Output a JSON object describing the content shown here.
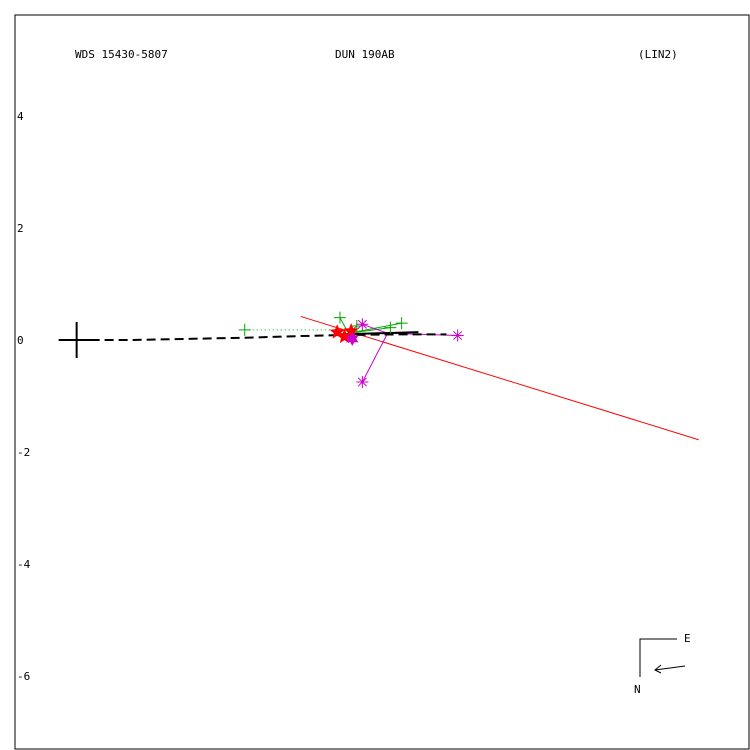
{
  "chart_data": {
    "type": "scatter",
    "title_left": "WDS 15430-5807",
    "title_center": "DUN 190AB",
    "title_right": "(LIN2)",
    "xlabel": "",
    "ylabel": "",
    "xlim": [
      -1.1,
      12.0
    ],
    "ylim": [
      -7.3,
      5.8
    ],
    "yticks": [
      4,
      2,
      0,
      -2,
      -4,
      -6
    ],
    "ytick_labels": [
      "4",
      "2",
      "0",
      "-2",
      "-4",
      "-6"
    ],
    "grid": false,
    "colors": {
      "primary": "#000000",
      "orbit_line": "#ff0000",
      "micrometer": "#00aa00",
      "speckle": "#cc00cc",
      "stars": "#ff0000",
      "frame": "#000000"
    },
    "primary_star": {
      "x": 0,
      "y": 0
    },
    "dashed_path": {
      "color": "#000000",
      "points": [
        [
          0,
          0
        ],
        [
          1.0,
          0.0
        ],
        [
          2.0,
          0.02
        ],
        [
          3.0,
          0.04
        ],
        [
          4.0,
          0.07
        ],
        [
          4.8,
          0.09
        ],
        [
          5.8,
          0.1
        ],
        [
          6.6,
          0.1
        ]
      ]
    },
    "red_line": {
      "x1": 4.0,
      "y1": 0.42,
      "x2": 11.1,
      "y2": -1.78
    },
    "green_points": [
      {
        "x": 3.0,
        "y": 0.18
      },
      {
        "x": 4.7,
        "y": 0.4
      },
      {
        "x": 5.0,
        "y": 0.25
      },
      {
        "x": 5.6,
        "y": 0.22
      },
      {
        "x": 5.8,
        "y": 0.3
      }
    ],
    "green_dotted": [
      [
        3.0,
        0.18
      ],
      [
        4.6,
        0.18
      ]
    ],
    "magenta_points": [
      {
        "x": 5.1,
        "y": 0.28
      },
      {
        "x": 5.1,
        "y": -0.75
      },
      {
        "x": 6.8,
        "y": 0.08
      }
    ],
    "red_stars": [
      {
        "x": 4.65,
        "y": 0.14
      },
      {
        "x": 4.9,
        "y": 0.16
      },
      {
        "x": 4.78,
        "y": 0.06
      }
    ],
    "magenta_stars": [
      {
        "x": 4.92,
        "y": 0.02
      }
    ],
    "compass": {
      "east_label": "E",
      "north_label": "N"
    }
  }
}
